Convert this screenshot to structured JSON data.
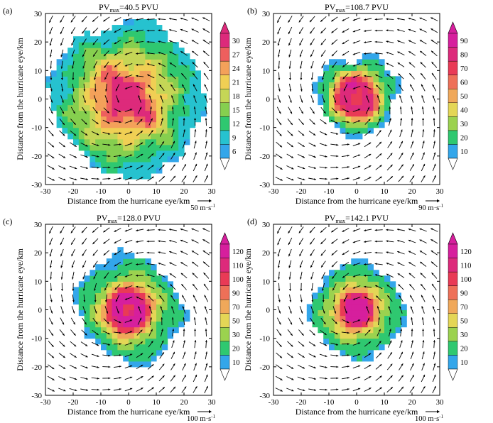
{
  "figure": {
    "panel_count": 4,
    "colors": {
      "vector": "#000000",
      "axis": "#000000",
      "background": "#ffffff"
    }
  },
  "chart_data": [
    {
      "type": "heatmap",
      "panel_label": "(a)",
      "title": {
        "prefix": "PV",
        "subscript": "max",
        "value": "=40.5 PVU"
      },
      "xlabel": "Distance from the hurricane eye/km",
      "ylabel": "Distance from the hurricane eye/km",
      "xlim": [
        -30,
        30
      ],
      "ylim": [
        -30,
        30
      ],
      "xticks": [
        "-30",
        "-20",
        "-10",
        "0",
        "10",
        "20",
        "30"
      ],
      "yticks": [
        "-30",
        "-20",
        "-10",
        "0",
        "10",
        "20",
        "30"
      ],
      "pv_max": 40.5,
      "field": {
        "core_radius_km": 25,
        "peak_value": 30,
        "noise": 0.55,
        "ring": false,
        "offset": [
          -1,
          0
        ]
      },
      "colorbar": {
        "levels": [
          "6",
          "9",
          "12",
          "15",
          "18",
          "21",
          "24",
          "27",
          "30"
        ],
        "colors": [
          "#33a6ea",
          "#26c2cf",
          "#2fc870",
          "#86cf4f",
          "#c5d656",
          "#f0cf54",
          "#f3a15a",
          "#ee5f5e",
          "#dd2a7b"
        ]
      },
      "wind_reference": {
        "value": "50",
        "unit": "m·s",
        "exponent": "-1"
      }
    },
    {
      "type": "heatmap",
      "panel_label": "(b)",
      "title": {
        "prefix": "PV",
        "subscript": "max",
        "value": "=108.7 PVU"
      },
      "xlabel": "Distance from the hurricane eye/km",
      "ylabel": "Distance from the hurricane eye/km",
      "xlim": [
        -30,
        30
      ],
      "ylim": [
        -30,
        30
      ],
      "xticks": [
        "-30",
        "-20",
        "-10",
        "0",
        "10",
        "20",
        "30"
      ],
      "yticks": [
        "-30",
        "-20",
        "-10",
        "0",
        "10",
        "20",
        "30"
      ],
      "pv_max": 108.7,
      "field": {
        "core_radius_km": 15,
        "peak_value": 90,
        "noise": 0.3,
        "ring": true,
        "ring_radius_km": 6,
        "offset": [
          0,
          1
        ]
      },
      "colorbar": {
        "levels": [
          "10",
          "20",
          "30",
          "40",
          "50",
          "60",
          "70",
          "80",
          "90"
        ],
        "colors": [
          "#33a6ea",
          "#2fc870",
          "#9bd24f",
          "#e4d656",
          "#f0a85a",
          "#ee7058",
          "#e93a56",
          "#dd2a7b",
          "#d61f9d"
        ]
      },
      "wind_reference": {
        "value": "90",
        "unit": "m·s",
        "exponent": "-1"
      }
    },
    {
      "type": "heatmap",
      "panel_label": "(c)",
      "title": {
        "prefix": "PV",
        "subscript": "max",
        "value": "=128.0 PVU"
      },
      "xlabel": "Distance from the hurricane eye/km",
      "ylabel": "Distance from the hurricane eye/km",
      "xlim": [
        -30,
        30
      ],
      "ylim": [
        -30,
        30
      ],
      "xticks": [
        "-30",
        "-20",
        "-10",
        "0",
        "10",
        "20",
        "30"
      ],
      "yticks": [
        "-30",
        "-20",
        "-10",
        "0",
        "10",
        "20",
        "30"
      ],
      "pv_max": 128.0,
      "field": {
        "core_radius_km": 20,
        "peak_value": 120,
        "noise": 0.25,
        "ring": true,
        "ring_radius_km": 5,
        "offset": [
          0,
          0
        ]
      },
      "colorbar": {
        "levels": [
          "10",
          "20",
          "30",
          "50",
          "70",
          "90",
          "100",
          "110",
          "120"
        ],
        "colors": [
          "#33a6ea",
          "#2fc870",
          "#9bd24f",
          "#e4d656",
          "#f0a85a",
          "#ee7058",
          "#e93a56",
          "#dd2a7b",
          "#d61f9d"
        ]
      },
      "wind_reference": {
        "value": "100",
        "unit": "m·s",
        "exponent": "-1"
      }
    },
    {
      "type": "heatmap",
      "panel_label": "(d)",
      "title": {
        "prefix": "PV",
        "subscript": "max",
        "value": "=142.1 PVU"
      },
      "xlabel": "Distance from the hurricane eye/km",
      "ylabel": "Distance from the hurricane eye/km",
      "xlim": [
        -30,
        30
      ],
      "ylim": [
        -30,
        30
      ],
      "xticks": [
        "-30",
        "-20",
        "-10",
        "0",
        "10",
        "20",
        "30"
      ],
      "yticks": [
        "-30",
        "-20",
        "-10",
        "0",
        "10",
        "20",
        "30"
      ],
      "pv_max": 142.1,
      "field": {
        "core_radius_km": 18,
        "peak_value": 120,
        "noise": 0.2,
        "ring": true,
        "ring_radius_km": 3,
        "offset": [
          0,
          0
        ]
      },
      "colorbar": {
        "levels": [
          "10",
          "20",
          "30",
          "50",
          "70",
          "90",
          "100",
          "110",
          "120"
        ],
        "colors": [
          "#33a6ea",
          "#2fc870",
          "#9bd24f",
          "#e4d656",
          "#f0a85a",
          "#ee7058",
          "#e93a56",
          "#dd2a7b",
          "#d61f9d"
        ]
      },
      "wind_reference": {
        "value": "100",
        "unit": "m·s",
        "exponent": "-1"
      }
    }
  ]
}
